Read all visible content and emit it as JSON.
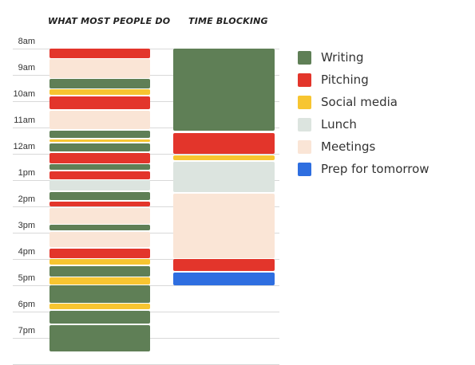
{
  "headers": {
    "left": "WHAT MOST PEOPLE DO",
    "right": "TIME BLOCKING"
  },
  "hours": [
    "8am",
    "9am",
    "10am",
    "11am",
    "12am",
    "1pm",
    "2pm",
    "3pm",
    "4pm",
    "5pm",
    "6pm",
    "7pm"
  ],
  "categories": {
    "writing": {
      "label": "Writing",
      "color": "#5f7f56"
    },
    "pitching": {
      "label": "Pitching",
      "color": "#e3352b"
    },
    "social": {
      "label": "Social media",
      "color": "#f7c531"
    },
    "lunch": {
      "label": "Lunch",
      "color": "#dce4df"
    },
    "meetings": {
      "label": "Meetings",
      "color": "#fae5d6"
    },
    "prep": {
      "label": "Prep for tomorrow",
      "color": "#2e6ee0"
    }
  },
  "legend_order": [
    "writing",
    "pitching",
    "social",
    "lunch",
    "meetings",
    "prep"
  ],
  "schedules": {
    "what_most_people_do": [
      [
        "pitching",
        8.25,
        8.6
      ],
      [
        "meetings",
        8.65,
        9.35
      ],
      [
        "writing",
        9.4,
        9.75
      ],
      [
        "social",
        9.8,
        10.0
      ],
      [
        "pitching",
        10.05,
        10.55
      ],
      [
        "meetings",
        10.6,
        11.3
      ],
      [
        "writing",
        11.35,
        11.65
      ],
      [
        "social",
        11.7,
        11.8
      ],
      [
        "writing",
        11.85,
        12.15
      ],
      [
        "pitching",
        12.2,
        12.6
      ],
      [
        "writing",
        12.65,
        12.85
      ],
      [
        "pitching",
        12.9,
        13.2
      ],
      [
        "lunch",
        13.25,
        13.65
      ],
      [
        "writing",
        13.7,
        14.0
      ],
      [
        "pitching",
        14.05,
        14.25
      ],
      [
        "meetings",
        14.3,
        14.9
      ],
      [
        "writing",
        14.95,
        15.15
      ],
      [
        "meetings",
        15.2,
        15.8
      ],
      [
        "pitching",
        15.85,
        16.2
      ],
      [
        "social",
        16.25,
        16.45
      ],
      [
        "writing",
        16.5,
        16.9
      ],
      [
        "social",
        16.95,
        17.2
      ],
      [
        "writing",
        17.25,
        17.9
      ],
      [
        "social",
        17.95,
        18.15
      ],
      [
        "writing",
        18.2,
        18.7
      ],
      [
        "writing",
        18.75,
        19.75
      ]
    ],
    "time_blocking": [
      [
        "writing",
        8.25,
        11.35
      ],
      [
        "pitching",
        11.45,
        12.25
      ],
      [
        "social",
        12.3,
        12.5
      ],
      [
        "lunch",
        12.55,
        13.7
      ],
      [
        "meetings",
        13.75,
        16.2
      ],
      [
        "pitching",
        16.25,
        16.7
      ],
      [
        "prep",
        16.75,
        17.25
      ]
    ]
  }
}
